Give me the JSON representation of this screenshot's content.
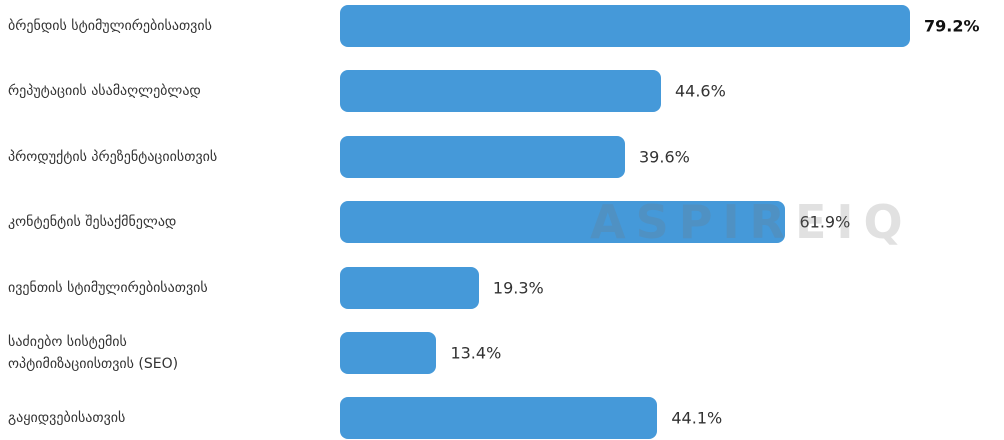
{
  "chart_data": {
    "type": "bar",
    "orientation": "horizontal",
    "categories": [
      "ბრენდის სტიმულირებისათვის",
      "რეპუტაციის ასამაღლებლად",
      "პროდუქტის პრეზენტაციისთვის",
      "კონტენტის შესაქმნელად",
      "ივენთის სტიმულირებისათვის",
      "საძიებო სისტემის\nოპტიმიზაციისთვის (SEO)",
      "გაყიდვებისათვის"
    ],
    "values": [
      79.2,
      44.6,
      39.6,
      61.9,
      19.3,
      13.4,
      44.1
    ],
    "value_labels": [
      "79.2%",
      "44.6%",
      "39.6%",
      "61.9%",
      "19.3%",
      "13.4%",
      "44.1%"
    ],
    "color": "#4599d9",
    "watermark": "ASPIREIQ"
  }
}
